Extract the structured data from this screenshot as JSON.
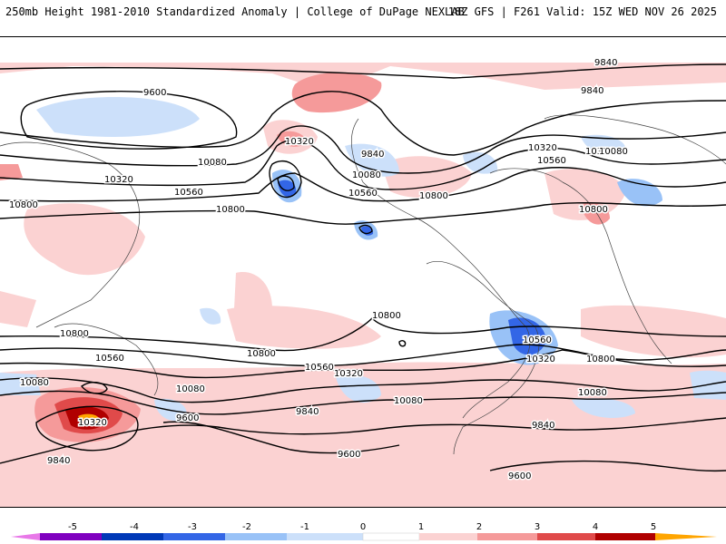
{
  "header": {
    "title": "250mb Height 1981-2010 Standardized Anomaly | College of DuPage NEXLAB",
    "run_info": "18Z GFS | F261 Valid: 15Z WED NOV 26 2025"
  },
  "contour_labels": [
    "9840",
    "9600",
    "9840",
    "10080",
    "10320",
    "10800",
    "10320",
    "10560",
    "10800",
    "9840",
    "10080",
    "10560",
    "10800",
    "10320",
    "10560",
    "10800",
    "10320",
    "10080",
    "10800",
    "10560",
    "10080",
    "10800",
    "10560",
    "10320",
    "10560",
    "10320",
    "10800",
    "10080",
    "9600",
    "10320",
    "10080",
    "9840",
    "9840",
    "9600",
    "9840",
    "9600",
    "10080",
    "10800"
  ],
  "colorbar": {
    "ticks": [
      "-5",
      "-4",
      "-3",
      "-2",
      "-1",
      "0",
      "1",
      "2",
      "3",
      "4",
      "5"
    ],
    "colors": [
      "#e878e8",
      "#7f00bf",
      "#0039b7",
      "#3366e6",
      "#99c2f7",
      "#cce0fa",
      "#ffffff",
      "#fbd2d2",
      "#f59a9a",
      "#e04a4a",
      "#b00000",
      "#ffa500"
    ]
  }
}
